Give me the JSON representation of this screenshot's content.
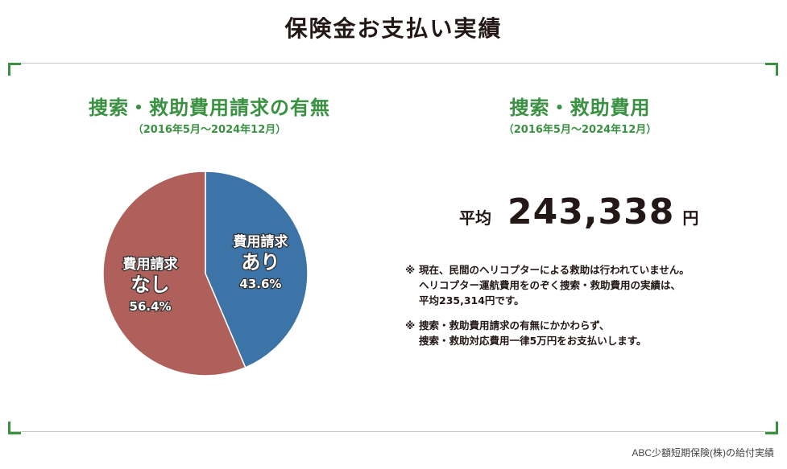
{
  "page": {
    "title": "保険金お支払い実績"
  },
  "left": {
    "title": "捜索・救助費用請求の有無",
    "period": "（2016年5月～2024年12月）"
  },
  "right": {
    "title": "捜索・救助費用",
    "period": "（2016年5月～2024年12月）",
    "average_label": "平均",
    "average_value": "243,338",
    "average_unit": "円",
    "notes": [
      {
        "mark": "※",
        "lines": [
          "現在、民間のヘリコプターによる救助は行われていません。",
          "ヘリコプター運航費用をのぞく捜索・救助費用の実績は、",
          "平均235,314円です。"
        ]
      },
      {
        "mark": "※",
        "lines": [
          "捜索・救助費用請求の有無にかかわらず、",
          "捜索・救助対応費用一律5万円をお支払いします。"
        ]
      }
    ]
  },
  "chart_data": {
    "type": "pie",
    "title": "捜索・救助費用請求の有無",
    "slices": [
      {
        "label_top": "費用請求",
        "label_main": "あり",
        "value": 43.6,
        "value_label": "43.6%",
        "color": "#3c74a8"
      },
      {
        "label_top": "費用請求",
        "label_main": "なし",
        "value": 56.4,
        "value_label": "56.4%",
        "color": "#b0605a"
      }
    ]
  },
  "footer": {
    "source": "ABC少額短期保険(株)の給付実績"
  },
  "colors": {
    "accent": "#3a9141",
    "text": "#231815"
  }
}
